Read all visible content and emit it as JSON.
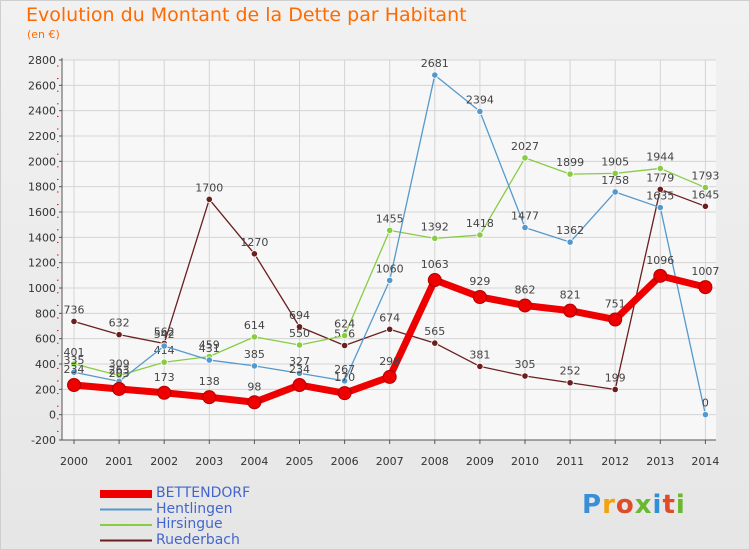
{
  "title": "Evolution du Montant de la Dette par Habitant",
  "subtitle": "(en €)",
  "logo": "Proxiti",
  "chart_data": {
    "type": "line",
    "x": [
      2000,
      2001,
      2002,
      2003,
      2004,
      2005,
      2006,
      2007,
      2008,
      2009,
      2010,
      2011,
      2012,
      2013,
      2014
    ],
    "ylim": [
      -200,
      2800
    ],
    "yticks": [
      -200,
      0,
      200,
      400,
      600,
      800,
      1000,
      1200,
      1400,
      1600,
      1800,
      2000,
      2200,
      2400,
      2600,
      2800
    ],
    "grid": true,
    "legend": "bottom-left",
    "series": [
      {
        "name": "Ruederbach",
        "color": "#6b1e1e",
        "values": [
          736,
          632,
          562,
          1700,
          1270,
          694,
          546,
          674,
          565,
          381,
          305,
          252,
          199,
          1779,
          1645
        ]
      },
      {
        "name": "Hirsingue",
        "color": "#88cc44",
        "values": [
          401,
          309,
          414,
          459,
          614,
          550,
          624,
          1455,
          1392,
          1418,
          2027,
          1899,
          1905,
          1944,
          1793
        ]
      },
      {
        "name": "Hentlingen",
        "color": "#5599cc",
        "values": [
          335,
          263,
          542,
          431,
          385,
          327,
          267,
          1060,
          2681,
          2394,
          1477,
          1362,
          1758,
          1635,
          0
        ]
      },
      {
        "name": "BETTENDORF",
        "color": "#ee0000",
        "values": [
          234,
          203,
          173,
          138,
          98,
          234,
          170,
          298,
          1063,
          929,
          862,
          821,
          751,
          1096,
          1007
        ]
      }
    ]
  }
}
